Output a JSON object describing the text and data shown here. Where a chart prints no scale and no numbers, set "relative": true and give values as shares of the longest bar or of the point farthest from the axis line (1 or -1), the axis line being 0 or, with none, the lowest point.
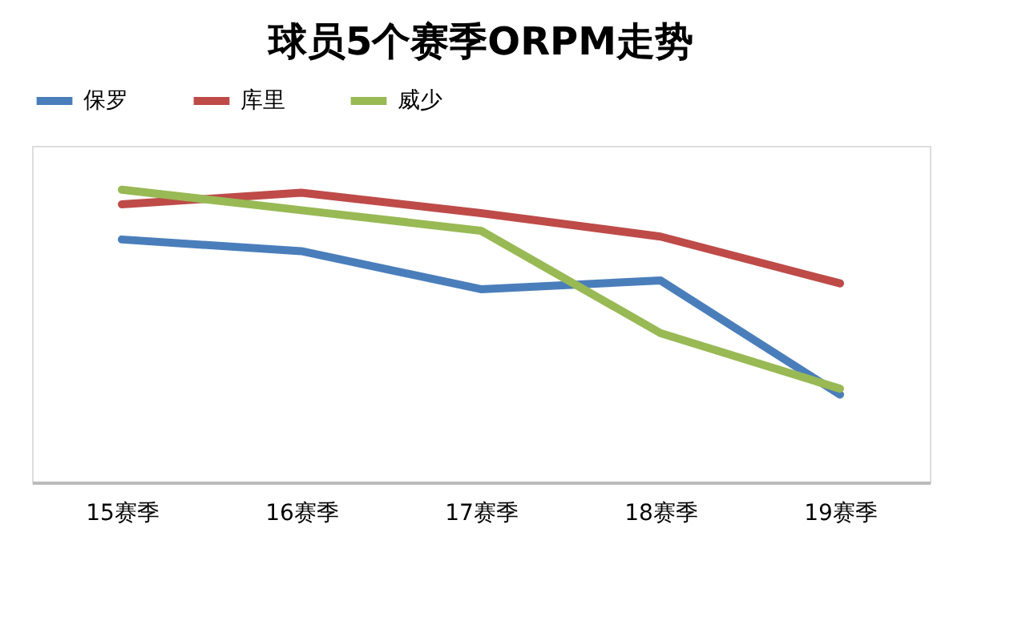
{
  "chart_data": {
    "type": "line",
    "title": "球员5个赛季ORPM走势",
    "relative": true,
    "legend": "top",
    "grid": false,
    "categories": [
      "15赛季",
      "16赛季",
      "17赛季",
      "18赛季",
      "19赛季"
    ],
    "series": [
      {
        "name": "保罗",
        "color": "#4a7ebb",
        "values": [
          0.83,
          0.79,
          0.66,
          0.69,
          0.3
        ]
      },
      {
        "name": "库里",
        "color": "#be4b48",
        "values": [
          0.95,
          0.99,
          0.92,
          0.84,
          0.68
        ]
      },
      {
        "name": "威少",
        "color": "#98b954",
        "values": [
          1,
          0.93,
          0.86,
          0.51,
          0.32
        ]
      }
    ]
  }
}
